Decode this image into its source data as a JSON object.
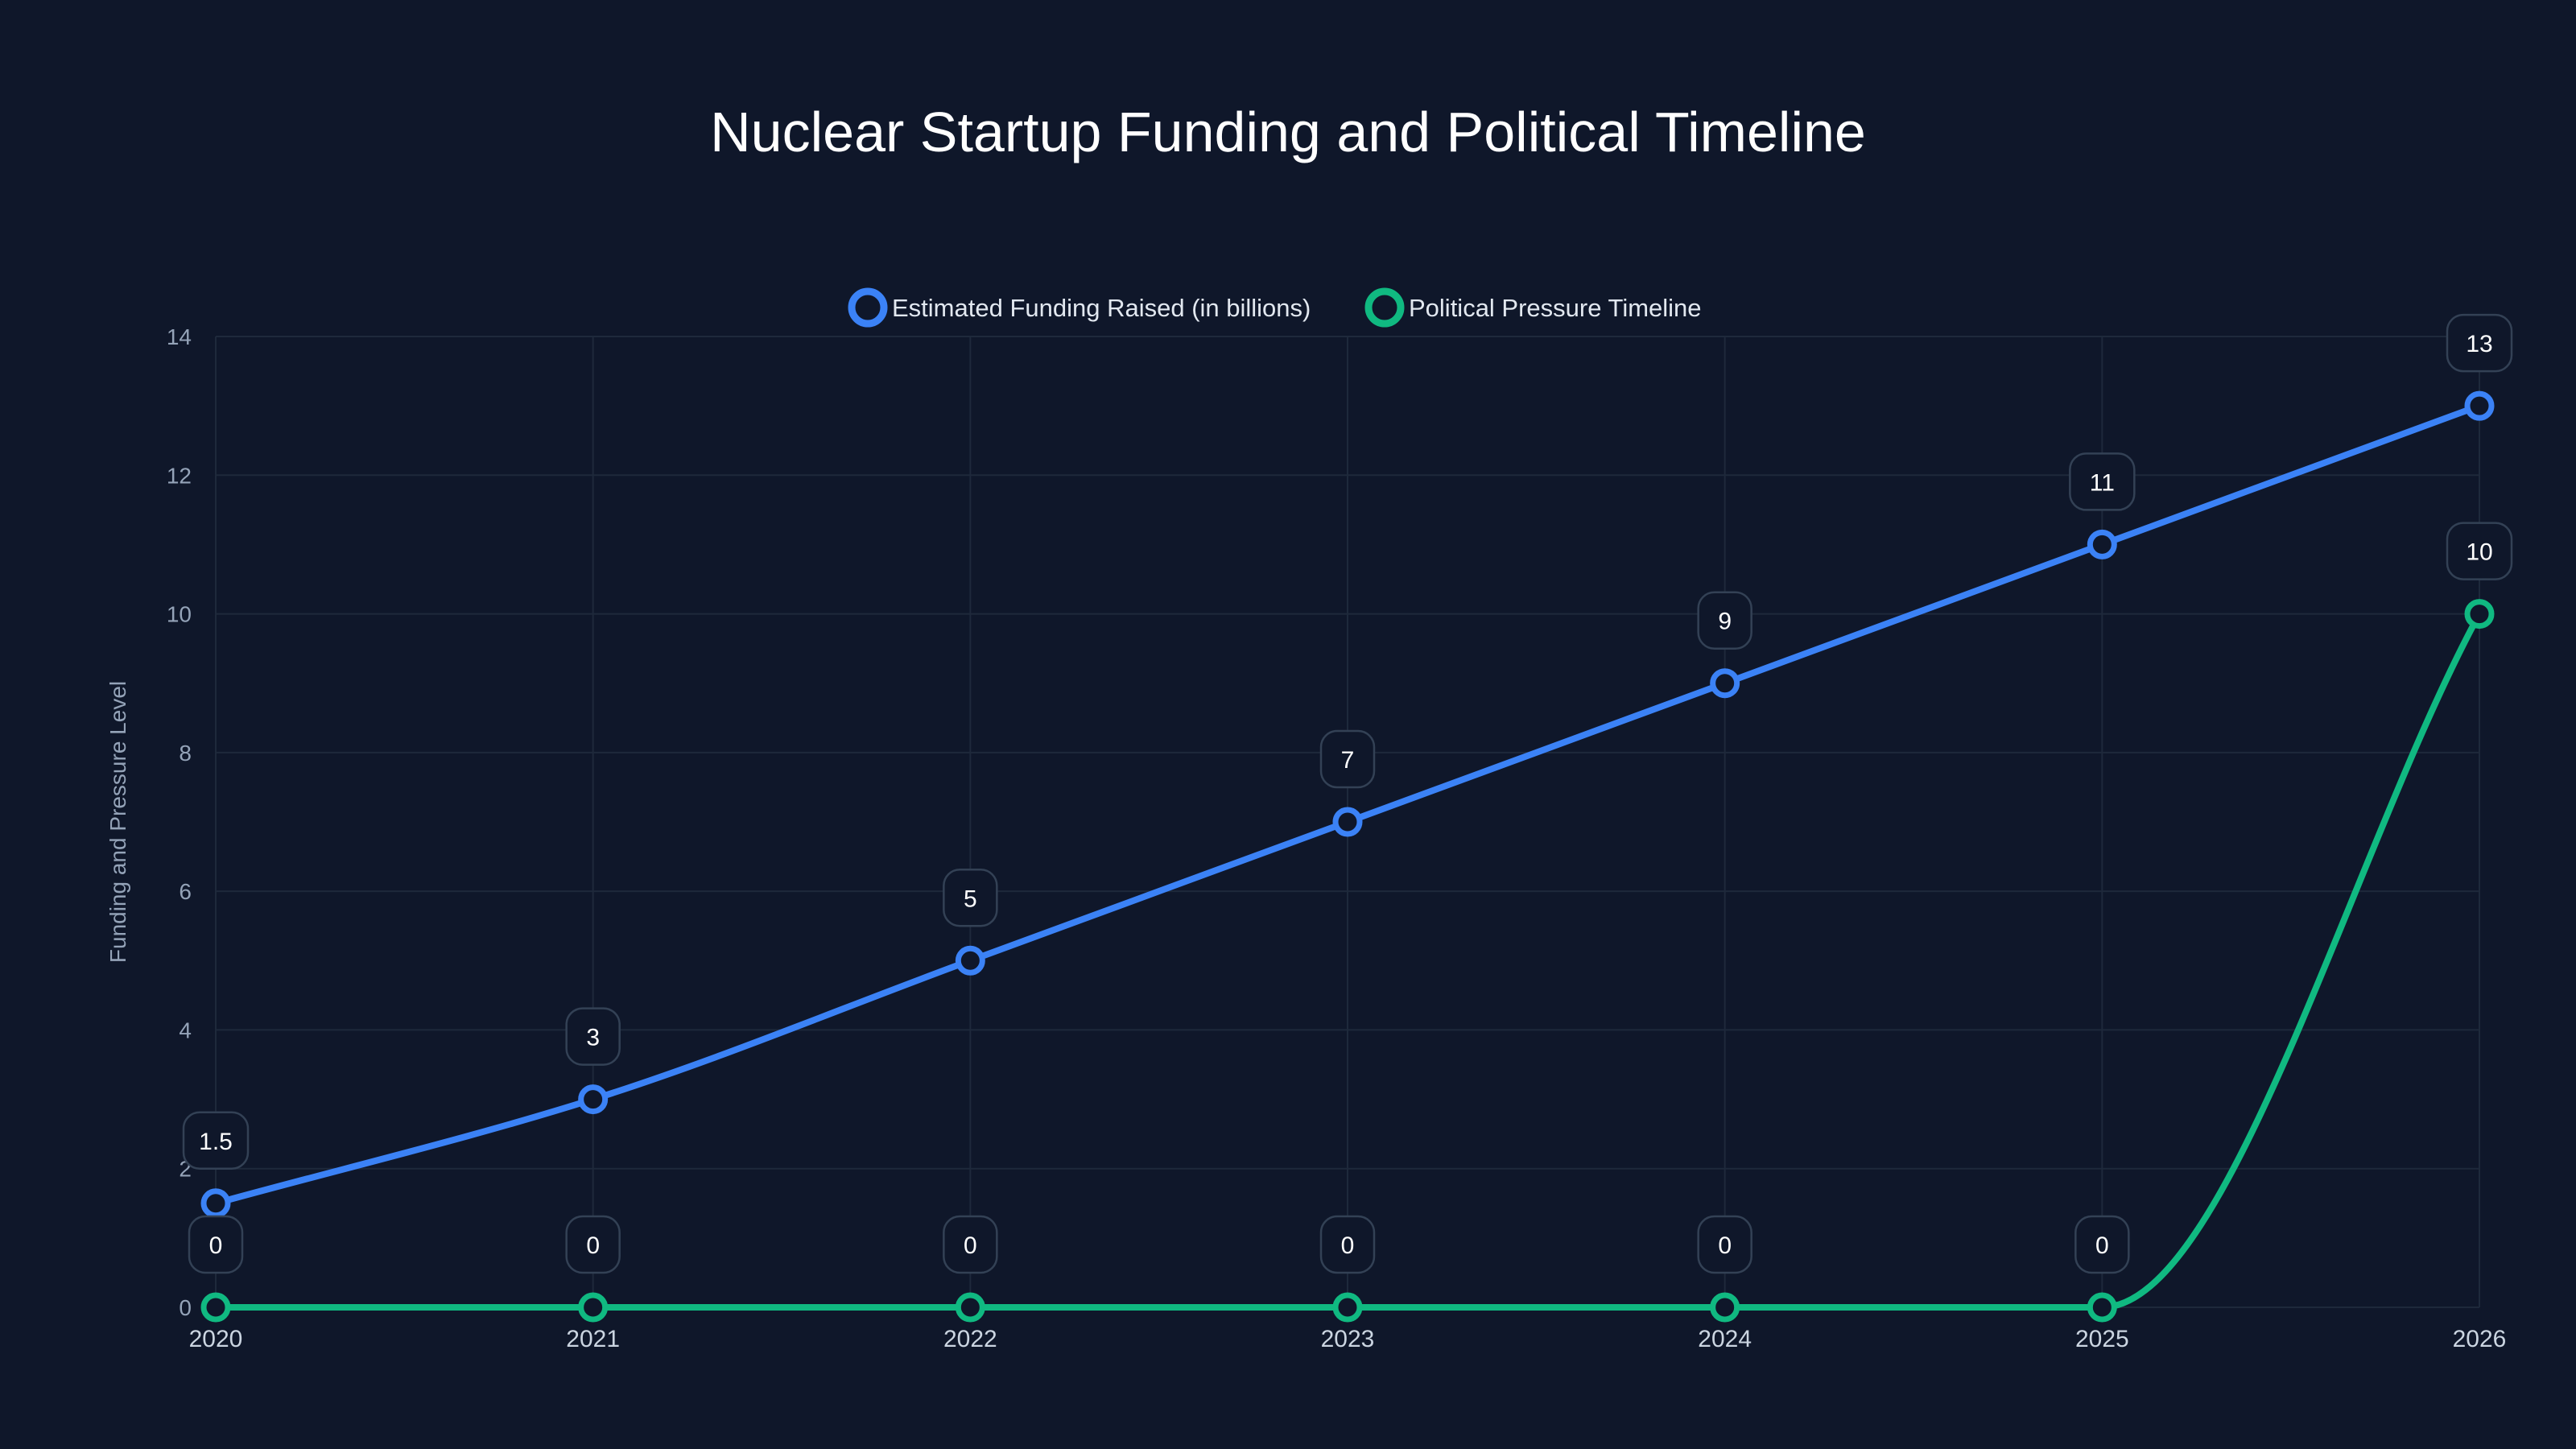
{
  "chart": {
    "title": "Nuclear Startup Funding and Political Timeline",
    "ylabel": "Funding and Pressure Level",
    "legend": [
      {
        "label": "Estimated Funding Raised (in billions)",
        "color": "#3b82f6"
      },
      {
        "label": "Political Pressure Timeline",
        "color": "#10b981"
      }
    ],
    "y_ticks": [
      "0",
      "2",
      "4",
      "6",
      "8",
      "10",
      "12",
      "14"
    ],
    "x_ticks": [
      "2020",
      "2021",
      "2022",
      "2023",
      "2024",
      "2025",
      "2026"
    ]
  },
  "chart_data": {
    "type": "line",
    "title": "Nuclear Startup Funding and Political Timeline",
    "xlabel": "",
    "ylabel": "Funding and Pressure Level",
    "categories": [
      "2020",
      "2021",
      "2022",
      "2023",
      "2024",
      "2025",
      "2026"
    ],
    "series": [
      {
        "name": "Estimated Funding Raised (in billions)",
        "color": "#3b82f6",
        "values": [
          1.5,
          3,
          5,
          7,
          9,
          11,
          13
        ]
      },
      {
        "name": "Political Pressure Timeline",
        "color": "#10b981",
        "values": [
          0,
          0,
          0,
          0,
          0,
          0,
          10
        ]
      }
    ],
    "ylim": [
      0,
      14
    ],
    "y_tick_step": 2,
    "grid": true,
    "legend_position": "top",
    "data_labels": true
  }
}
